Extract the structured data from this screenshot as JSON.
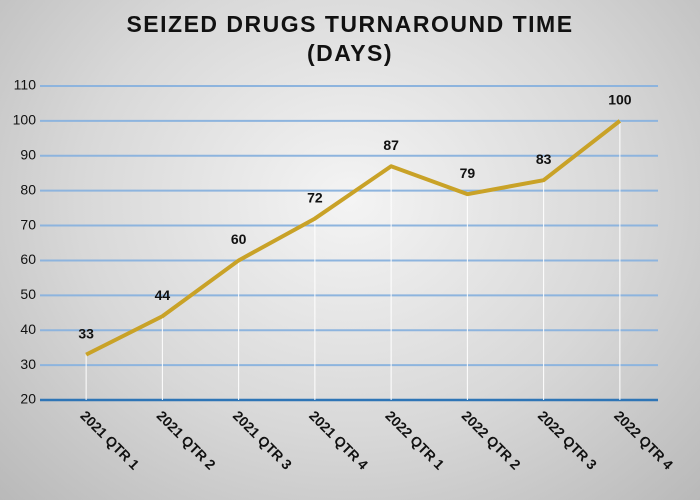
{
  "chart_data": {
    "type": "line",
    "title": "SEIZED DRUGS TURNAROUND TIME (DAYS)",
    "categories": [
      "2021 QTR 1",
      "2021 QTR 2",
      "2021 QTR 3",
      "2021 QTR 4",
      "2022 QTR 1",
      "2022 QTR 2",
      "2022 QTR 3",
      "2022 QTR 4"
    ],
    "values": [
      33,
      44,
      60,
      72,
      87,
      79,
      83,
      100
    ],
    "color": "#c9a227",
    "ylim": [
      20,
      110
    ],
    "yticks": [
      20,
      30,
      40,
      50,
      60,
      70,
      80,
      90,
      100,
      110
    ],
    "grid": true
  }
}
